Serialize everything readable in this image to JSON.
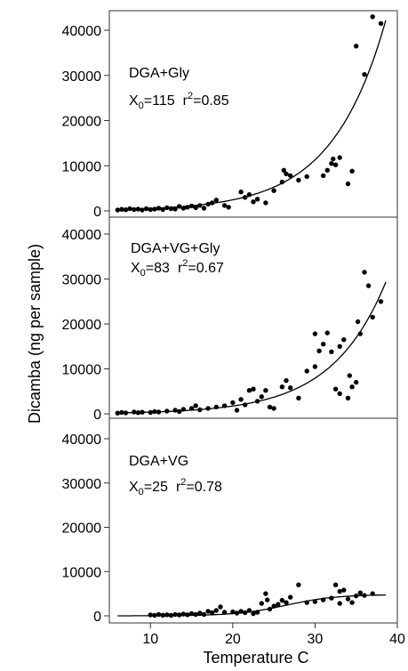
{
  "chart_data": [
    {
      "type": "scatter",
      "panel_label": "DGA+Gly",
      "x0_label": "X",
      "x0_sub": "0",
      "x0_value": "=115",
      "r_label": "r",
      "r_sup": "2",
      "r_value": "=0.85",
      "ylim": [
        0,
        42000
      ],
      "yticks": [
        "0",
        "10000",
        "20000",
        "30000",
        "40000"
      ],
      "fit": {
        "a": 115,
        "b": 0.153
      },
      "points": [
        [
          6,
          200
        ],
        [
          6.5,
          350
        ],
        [
          7,
          250
        ],
        [
          7.5,
          500
        ],
        [
          8,
          300
        ],
        [
          8.5,
          400
        ],
        [
          9,
          200
        ],
        [
          9.5,
          500
        ],
        [
          10,
          300
        ],
        [
          10.5,
          400
        ],
        [
          11,
          600
        ],
        [
          11.5,
          300
        ],
        [
          12,
          700
        ],
        [
          12.5,
          500
        ],
        [
          13,
          400
        ],
        [
          13.5,
          1000
        ],
        [
          14,
          600
        ],
        [
          14.5,
          800
        ],
        [
          15,
          1100
        ],
        [
          15.5,
          700
        ],
        [
          16,
          1200
        ],
        [
          16.5,
          600
        ],
        [
          17,
          1500
        ],
        [
          17.5,
          1800
        ],
        [
          18,
          2400
        ],
        [
          19,
          1200
        ],
        [
          19.5,
          800
        ],
        [
          21,
          4200
        ],
        [
          21.5,
          3000
        ],
        [
          22,
          3600
        ],
        [
          22.5,
          2000
        ],
        [
          23,
          2600
        ],
        [
          24,
          1800
        ],
        [
          25,
          4500
        ],
        [
          26,
          6400
        ],
        [
          26.2,
          9000
        ],
        [
          26.5,
          8200
        ],
        [
          27,
          7800
        ],
        [
          29,
          7600
        ],
        [
          31,
          7800
        ],
        [
          31.5,
          9000
        ],
        [
          32,
          10500
        ],
        [
          32.2,
          11500
        ],
        [
          32.5,
          10200
        ],
        [
          33,
          11800
        ],
        [
          34,
          6000
        ],
        [
          34.5,
          8800
        ],
        [
          35,
          36500
        ],
        [
          36,
          30200
        ],
        [
          37,
          43000
        ],
        [
          38,
          41500
        ],
        [
          28,
          6800
        ]
      ]
    },
    {
      "type": "scatter",
      "panel_label": "DGA+VG+Gly",
      "x0_label": "X",
      "x0_sub": "0",
      "x0_value": "=83",
      "r_label": "r",
      "r_sup": "2",
      "r_value": "=0.67",
      "ylim": [
        0,
        42000
      ],
      "yticks": [
        "0",
        "10000",
        "20000",
        "30000",
        "40000"
      ],
      "fit": {
        "a": 83,
        "b": 0.152
      },
      "points": [
        [
          6,
          150
        ],
        [
          6.5,
          300
        ],
        [
          7,
          200
        ],
        [
          8,
          400
        ],
        [
          8.5,
          250
        ],
        [
          9,
          350
        ],
        [
          10,
          300
        ],
        [
          10.5,
          500
        ],
        [
          11,
          400
        ],
        [
          12,
          600
        ],
        [
          13,
          800
        ],
        [
          13.5,
          500
        ],
        [
          14,
          1000
        ],
        [
          15,
          1200
        ],
        [
          15.5,
          1800
        ],
        [
          16,
          900
        ],
        [
          17,
          1200
        ],
        [
          18,
          1500
        ],
        [
          19,
          1800
        ],
        [
          20,
          2500
        ],
        [
          20.5,
          800
        ],
        [
          21,
          3200
        ],
        [
          21.5,
          2000
        ],
        [
          22,
          5200
        ],
        [
          22.5,
          5500
        ],
        [
          23,
          2800
        ],
        [
          23.5,
          3800
        ],
        [
          24,
          5200
        ],
        [
          24.5,
          1500
        ],
        [
          25,
          1200
        ],
        [
          26,
          6000
        ],
        [
          26.5,
          7400
        ],
        [
          27,
          5800
        ],
        [
          28,
          3500
        ],
        [
          29,
          9500
        ],
        [
          30,
          10500
        ],
        [
          30.5,
          14000
        ],
        [
          31,
          15500
        ],
        [
          31.5,
          18000
        ],
        [
          32,
          13800
        ],
        [
          32.5,
          5500
        ],
        [
          33,
          15000
        ],
        [
          33.5,
          16500
        ],
        [
          34,
          3500
        ],
        [
          34.2,
          8500
        ],
        [
          34.5,
          6000
        ],
        [
          35,
          7000
        ],
        [
          35.2,
          20500
        ],
        [
          35.5,
          17800
        ],
        [
          36,
          31500
        ],
        [
          36.5,
          28500
        ],
        [
          37,
          21500
        ],
        [
          38,
          25000
        ],
        [
          30,
          17800
        ],
        [
          33,
          4500
        ]
      ]
    },
    {
      "type": "scatter",
      "panel_label": "DGA+VG",
      "x0_label": "X",
      "x0_sub": "0",
      "x0_value": "=25",
      "r_label": "r",
      "r_sup": "2",
      "r_value": "=0.78",
      "xlabel": "Temperature C",
      "ylim": [
        0,
        42000
      ],
      "xlim": [
        5,
        40
      ],
      "yticks": [
        "0",
        "10000",
        "20000",
        "30000",
        "40000"
      ],
      "xticks": [
        "10",
        "20",
        "30",
        "40"
      ],
      "fit": {
        "type": "logistic",
        "max": 4800,
        "mid": 26.5,
        "k": 0.33
      },
      "points": [
        [
          10,
          200
        ],
        [
          10.5,
          100
        ],
        [
          11,
          300
        ],
        [
          11.5,
          150
        ],
        [
          12,
          250
        ],
        [
          12.5,
          100
        ],
        [
          13,
          300
        ],
        [
          13.5,
          200
        ],
        [
          14,
          400
        ],
        [
          14.5,
          250
        ],
        [
          15,
          500
        ],
        [
          15.5,
          300
        ],
        [
          16,
          600
        ],
        [
          16.5,
          300
        ],
        [
          17,
          1000
        ],
        [
          17.5,
          700
        ],
        [
          18,
          1200
        ],
        [
          18.5,
          2000
        ],
        [
          19,
          800
        ],
        [
          20,
          900
        ],
        [
          20.5,
          600
        ],
        [
          21,
          1000
        ],
        [
          21.5,
          700
        ],
        [
          22,
          1200
        ],
        [
          22.5,
          500
        ],
        [
          23,
          800
        ],
        [
          23.5,
          2800
        ],
        [
          24,
          5000
        ],
        [
          24.2,
          3600
        ],
        [
          24.5,
          1500
        ],
        [
          25,
          2200
        ],
        [
          25.5,
          2600
        ],
        [
          26,
          3500
        ],
        [
          26.5,
          3000
        ],
        [
          27,
          4200
        ],
        [
          28,
          7000
        ],
        [
          29,
          3000
        ],
        [
          30,
          3200
        ],
        [
          31,
          3600
        ],
        [
          32,
          4000
        ],
        [
          32.5,
          7000
        ],
        [
          33,
          5500
        ],
        [
          33.5,
          5800
        ],
        [
          34,
          3800
        ],
        [
          34.5,
          3000
        ],
        [
          35,
          4500
        ],
        [
          35.5,
          5200
        ],
        [
          36,
          4600
        ],
        [
          37,
          5000
        ],
        [
          33,
          2800
        ]
      ]
    }
  ],
  "ylabel": "Dicamba (ng per sample)"
}
